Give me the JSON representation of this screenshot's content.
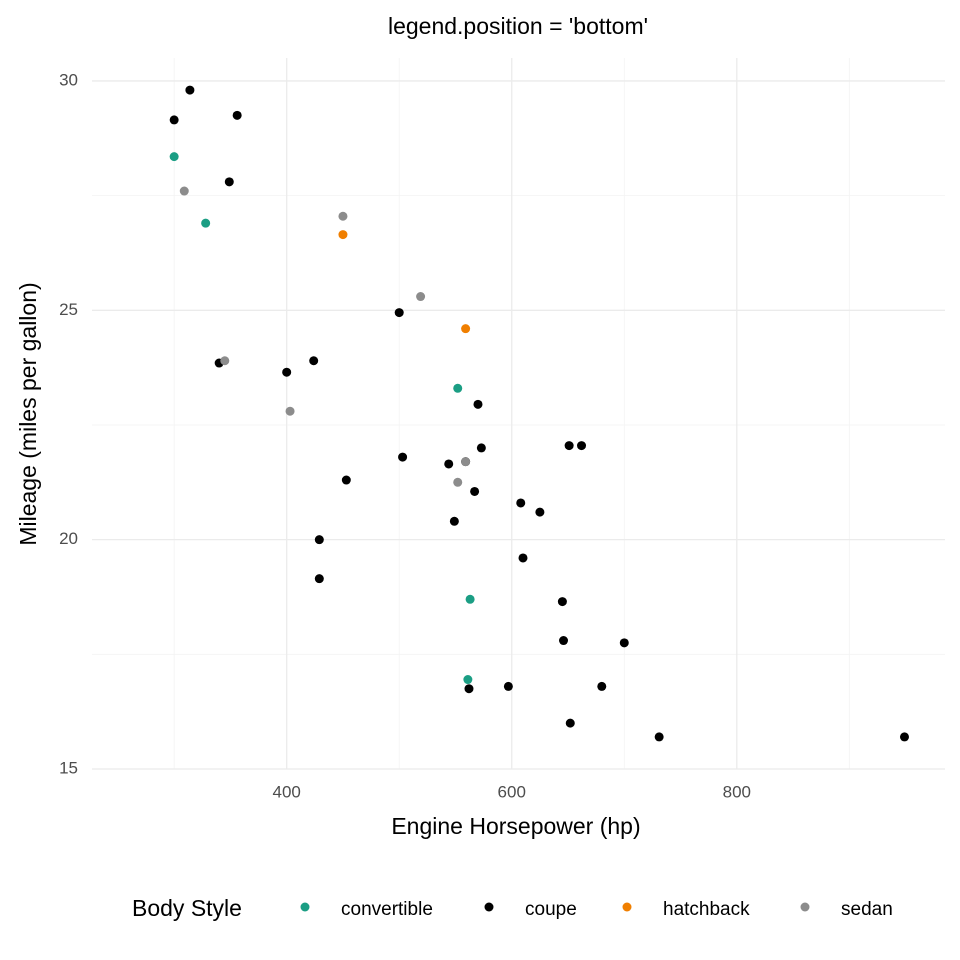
{
  "chart_data": {
    "type": "scatter",
    "title": "legend.position = 'bottom'",
    "x_label": "Engine Horsepower (hp)",
    "y_label": "Mileage (miles per gallon)",
    "legend_title": "Body Style",
    "legend_position": "bottom",
    "grid": true,
    "xlim": [
      227,
      985
    ],
    "ylim": [
      15,
      30.5
    ],
    "xticks": [
      400,
      600,
      800
    ],
    "yticks": [
      15,
      20,
      25,
      30
    ],
    "xminor": [
      300,
      500,
      700,
      900
    ],
    "yminor": [
      17.5,
      22.5,
      27.5
    ],
    "series": [
      {
        "name": "convertible",
        "color": "#1b9e84",
        "x": [
          300,
          328,
          552,
          563,
          561
        ],
        "values": [
          28.35,
          26.9,
          23.3,
          18.7,
          16.95
        ]
      },
      {
        "name": "coupe",
        "color": "#000000",
        "x": [
          314,
          300,
          356,
          349,
          340,
          400,
          424,
          500,
          570,
          573,
          651,
          662,
          503,
          544,
          559,
          453,
          567,
          608,
          625,
          549,
          429,
          610,
          429,
          645,
          646,
          700,
          562,
          597,
          680,
          652,
          731,
          949
        ],
        "values": [
          29.8,
          29.15,
          29.25,
          27.8,
          23.85,
          23.65,
          23.9,
          24.95,
          22.95,
          22.0,
          22.05,
          22.05,
          21.8,
          21.65,
          21.7,
          21.3,
          21.05,
          20.8,
          20.6,
          20.4,
          20.0,
          19.6,
          19.15,
          18.65,
          17.8,
          17.75,
          16.75,
          16.8,
          16.8,
          16.0,
          15.7,
          15.7
        ]
      },
      {
        "name": "hatchback",
        "color": "#f07f00",
        "x": [
          450,
          559
        ],
        "values": [
          26.65,
          24.6
        ]
      },
      {
        "name": "sedan",
        "color": "#8c8c8c",
        "x": [
          309,
          450,
          519,
          345,
          403,
          559,
          552
        ],
        "values": [
          27.6,
          27.05,
          25.3,
          23.9,
          22.8,
          21.7,
          21.25
        ]
      }
    ]
  }
}
